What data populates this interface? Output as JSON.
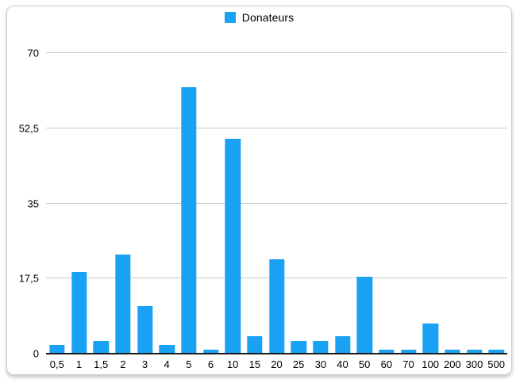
{
  "chart_data": {
    "type": "bar",
    "title": "",
    "legend": {
      "label": "Donateurs",
      "position": "top-center"
    },
    "categories": [
      "0,5",
      "1",
      "1,5",
      "2",
      "3",
      "4",
      "5",
      "6",
      "10",
      "15",
      "20",
      "25",
      "30",
      "40",
      "50",
      "60",
      "70",
      "100",
      "200",
      "300",
      "500"
    ],
    "values": [
      2,
      19,
      3,
      23,
      11,
      2,
      62,
      1,
      50,
      4,
      22,
      3,
      3,
      4,
      18,
      1,
      1,
      7,
      1,
      1,
      1
    ],
    "xlabel": "",
    "ylabel": "",
    "ylim": [
      0,
      70
    ],
    "yticks": [
      0,
      17.5,
      35,
      52.5,
      70
    ],
    "ytick_labels": [
      "0",
      "17,5",
      "35",
      "52,5",
      "70"
    ],
    "grid": true,
    "bar_width_fraction": 0.7
  },
  "colors": {
    "bar": "#19A1F3",
    "gridline": "#c9c9c9",
    "axis": "#1a1a1a",
    "text": "#000000",
    "frame_border": "#cccccc",
    "background": "#ffffff"
  }
}
